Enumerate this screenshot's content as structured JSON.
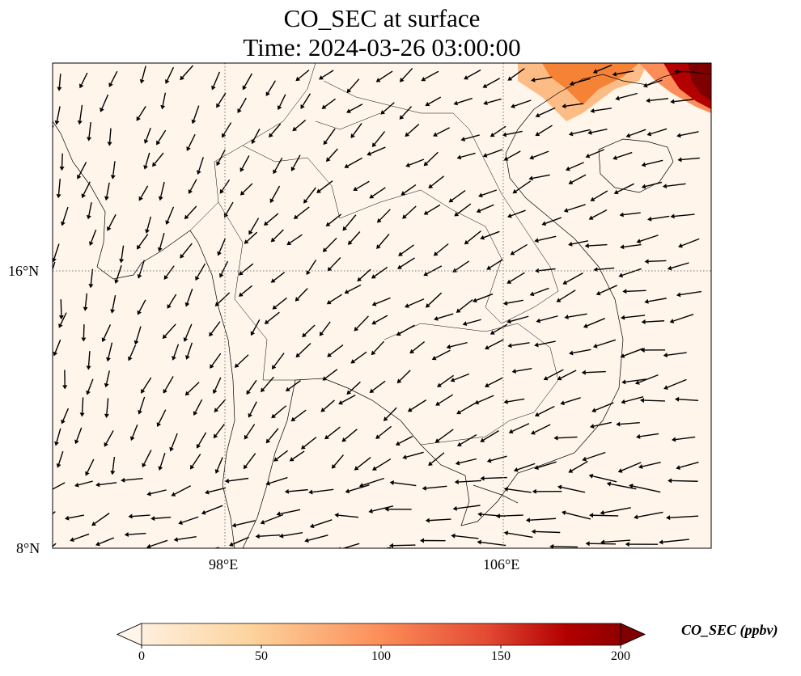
{
  "title": {
    "line1": "CO_SEC at surface",
    "line2": "Time: 2024-03-26 03:00:00"
  },
  "map": {
    "lon_range": [
      93,
      112
    ],
    "lat_range": [
      8,
      22
    ],
    "lon_ticks": [
      {
        "value": 98,
        "label": "98°E"
      },
      {
        "value": 106,
        "label": "106°E"
      }
    ],
    "lat_ticks": [
      {
        "value": 16,
        "label": "16°N"
      },
      {
        "value": 8,
        "label": "8°N"
      }
    ],
    "background_color": "#fff5eb",
    "plume_color": "#7f0000"
  },
  "colorbar": {
    "label": "CO_SEC (ppbv)",
    "min": 0,
    "max": 200,
    "ticks": [
      "0",
      "50",
      "100",
      "150",
      "200"
    ],
    "colors": [
      "#fff5eb",
      "#fdd49e",
      "#fc8d59",
      "#d7301f",
      "#b30000",
      "#7f0000"
    ]
  }
}
